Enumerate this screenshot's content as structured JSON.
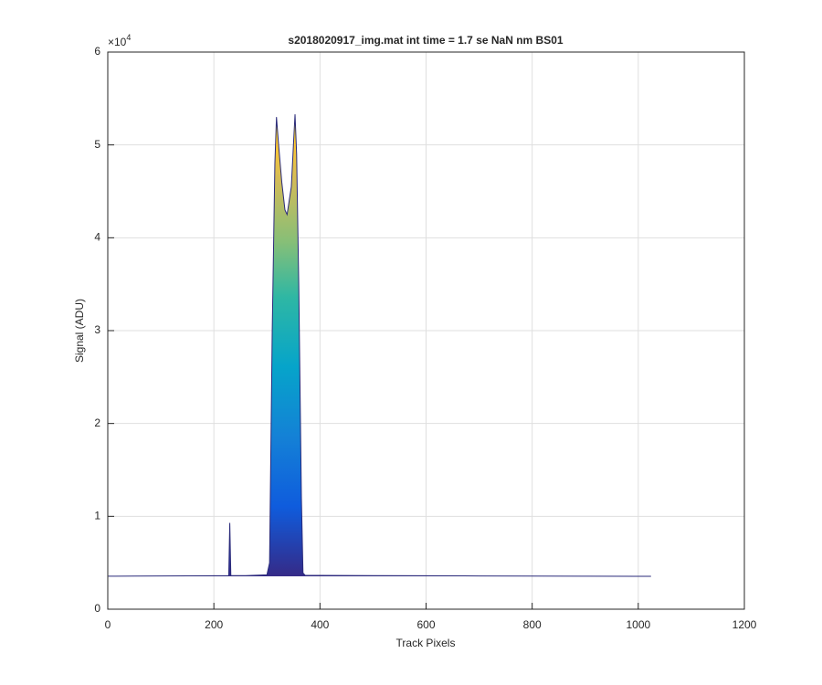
{
  "chart_data": {
    "type": "area",
    "title": "s2018020917_img.mat int time = 1.7 se  NaN nm BS01",
    "x_label": "Track Pixels",
    "y_label": "Signal (ADU)",
    "y_exponent": {
      "base": "×10",
      "power": "4"
    },
    "x": [
      1,
      50,
      100,
      150,
      200,
      228,
      230,
      232,
      260,
      300,
      305,
      310,
      315,
      318,
      322,
      328,
      334,
      338,
      342,
      346,
      350,
      353,
      356,
      360,
      365,
      368,
      372,
      400,
      500,
      600,
      700,
      800,
      900,
      1000,
      1024
    ],
    "values": [
      3550,
      3560,
      3580,
      3590,
      3600,
      3620,
      9300,
      3620,
      3620,
      3700,
      5000,
      30000,
      48000,
      53000,
      50000,
      46000,
      43000,
      42500,
      44000,
      45500,
      50000,
      53300,
      49000,
      35000,
      12000,
      3900,
      3650,
      3640,
      3620,
      3600,
      3580,
      3560,
      3550,
      3540,
      3540
    ],
    "color": "#2a2a7a",
    "xlim": [
      0,
      1200
    ],
    "ylim": [
      0,
      60000
    ],
    "xticks": [
      0,
      200,
      400,
      600,
      800,
      1000,
      1200
    ],
    "yticks": [
      {
        "value": 0,
        "label": "0"
      },
      {
        "value": 10000,
        "label": "1"
      },
      {
        "value": 20000,
        "label": "2"
      },
      {
        "value": 30000,
        "label": "3"
      },
      {
        "value": 40000,
        "label": "4"
      },
      {
        "value": 50000,
        "label": "5"
      },
      {
        "value": 60000,
        "label": "6"
      }
    ],
    "grid": true
  }
}
